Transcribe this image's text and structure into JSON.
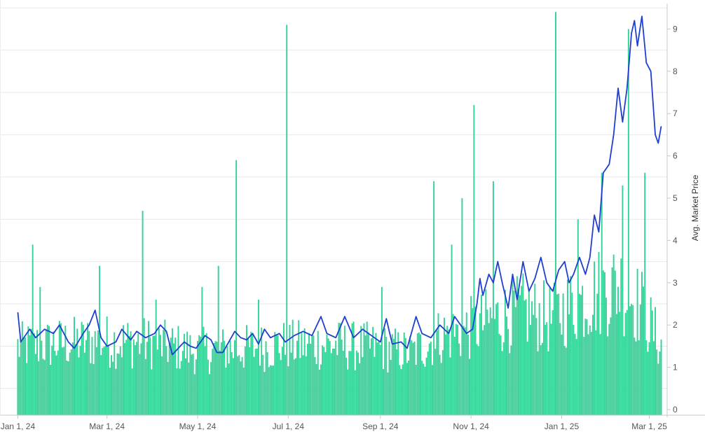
{
  "chart_data": {
    "type": "bar",
    "title": "",
    "xlabel": "",
    "ylabel": "Avg. Market Price",
    "ylim": [
      0,
      9.5
    ],
    "y_ticks": [
      "0",
      "1",
      "2",
      "3",
      "4",
      "5",
      "6",
      "7",
      "8",
      "9"
    ],
    "x_ticks": [
      {
        "label": "Jan 1, 24",
        "value": 0
      },
      {
        "label": "Mar 1, 24",
        "value": 60
      },
      {
        "label": "May 1, 24",
        "value": 121
      },
      {
        "label": "Jul 1, 24",
        "value": 182
      },
      {
        "label": "Sep 1, 24",
        "value": 244
      },
      {
        "label": "Nov 1, 24",
        "value": 305
      },
      {
        "label": "Jan 1, 25",
        "value": 366
      },
      {
        "label": "Mar 1, 25",
        "value": 425
      }
    ],
    "x_range": [
      -12,
      437
    ],
    "grid": true,
    "colors": {
      "bars": "#36d399",
      "line": "#1f3fd1",
      "grid": "#e8e8e8",
      "axis": "#c8c8c8"
    },
    "bar_series": {
      "name": "",
      "anchors": [
        [
          0,
          1.6
        ],
        [
          30,
          1.7
        ],
        [
          60,
          1.75
        ],
        [
          90,
          1.7
        ],
        [
          120,
          1.5
        ],
        [
          150,
          1.55
        ],
        [
          180,
          1.65
        ],
        [
          210,
          1.65
        ],
        [
          240,
          1.6
        ],
        [
          265,
          1.45
        ],
        [
          285,
          1.9
        ],
        [
          300,
          2.0
        ],
        [
          320,
          2.3
        ],
        [
          340,
          2.5
        ],
        [
          360,
          2.3
        ],
        [
          370,
          2.6
        ],
        [
          390,
          3.0
        ],
        [
          405,
          3.2
        ],
        [
          420,
          2.6
        ],
        [
          433,
          1.6
        ]
      ],
      "spikes": [
        {
          "x": 10,
          "value": 3.9
        },
        {
          "x": 15,
          "value": 2.9
        },
        {
          "x": 55,
          "value": 3.4
        },
        {
          "x": 84,
          "value": 4.7
        },
        {
          "x": 93,
          "value": 2.6
        },
        {
          "x": 124,
          "value": 2.9
        },
        {
          "x": 135,
          "value": 3.4
        },
        {
          "x": 147,
          "value": 5.9
        },
        {
          "x": 162,
          "value": 2.6
        },
        {
          "x": 181,
          "value": 9.1
        },
        {
          "x": 245,
          "value": 2.9
        },
        {
          "x": 280,
          "value": 5.4
        },
        {
          "x": 292,
          "value": 3.9
        },
        {
          "x": 299,
          "value": 5.0
        },
        {
          "x": 307,
          "value": 7.2
        },
        {
          "x": 320,
          "value": 5.4
        },
        {
          "x": 362,
          "value": 9.4
        },
        {
          "x": 377,
          "value": 4.5
        },
        {
          "x": 393,
          "value": 5.6
        },
        {
          "x": 407,
          "value": 5.3
        },
        {
          "x": 411,
          "value": 9.0
        },
        {
          "x": 422,
          "value": 5.6
        }
      ]
    },
    "line_series": {
      "name": "",
      "points": [
        [
          0,
          2.3
        ],
        [
          2,
          1.6
        ],
        [
          8,
          1.9
        ],
        [
          12,
          1.7
        ],
        [
          18,
          1.9
        ],
        [
          24,
          1.8
        ],
        [
          28,
          2.0
        ],
        [
          34,
          1.6
        ],
        [
          38,
          1.45
        ],
        [
          44,
          1.8
        ],
        [
          48,
          2.0
        ],
        [
          52,
          2.35
        ],
        [
          56,
          1.7
        ],
        [
          60,
          1.5
        ],
        [
          66,
          1.6
        ],
        [
          70,
          1.9
        ],
        [
          76,
          1.65
        ],
        [
          80,
          1.85
        ],
        [
          86,
          1.7
        ],
        [
          92,
          1.8
        ],
        [
          96,
          2.0
        ],
        [
          100,
          1.85
        ],
        [
          104,
          1.3
        ],
        [
          108,
          1.45
        ],
        [
          112,
          1.6
        ],
        [
          116,
          1.5
        ],
        [
          120,
          1.45
        ],
        [
          126,
          1.75
        ],
        [
          130,
          1.65
        ],
        [
          134,
          1.35
        ],
        [
          138,
          1.35
        ],
        [
          142,
          1.6
        ],
        [
          146,
          1.85
        ],
        [
          150,
          1.7
        ],
        [
          154,
          1.65
        ],
        [
          158,
          1.8
        ],
        [
          162,
          1.55
        ],
        [
          166,
          1.9
        ],
        [
          170,
          1.7
        ],
        [
          176,
          1.8
        ],
        [
          180,
          1.6
        ],
        [
          186,
          1.75
        ],
        [
          192,
          1.85
        ],
        [
          198,
          1.75
        ],
        [
          204,
          2.2
        ],
        [
          208,
          1.8
        ],
        [
          214,
          1.7
        ],
        [
          220,
          2.2
        ],
        [
          226,
          1.7
        ],
        [
          232,
          1.9
        ],
        [
          238,
          1.75
        ],
        [
          244,
          1.6
        ],
        [
          248,
          2.15
        ],
        [
          252,
          1.55
        ],
        [
          258,
          1.6
        ],
        [
          262,
          1.45
        ],
        [
          268,
          2.2
        ],
        [
          272,
          1.8
        ],
        [
          278,
          1.7
        ],
        [
          284,
          2.0
        ],
        [
          290,
          1.8
        ],
        [
          294,
          2.2
        ],
        [
          298,
          2.0
        ],
        [
          302,
          1.8
        ],
        [
          306,
          1.9
        ],
        [
          309,
          2.5
        ],
        [
          311,
          3.1
        ],
        [
          313,
          2.7
        ],
        [
          317,
          3.2
        ],
        [
          320,
          3.0
        ],
        [
          323,
          3.5
        ],
        [
          326,
          3.0
        ],
        [
          330,
          2.4
        ],
        [
          333,
          3.2
        ],
        [
          336,
          2.6
        ],
        [
          340,
          3.5
        ],
        [
          344,
          2.8
        ],
        [
          348,
          3.1
        ],
        [
          352,
          3.6
        ],
        [
          356,
          3.0
        ],
        [
          360,
          2.8
        ],
        [
          364,
          3.3
        ],
        [
          368,
          3.5
        ],
        [
          371,
          3.0
        ],
        [
          374,
          3.2
        ],
        [
          378,
          3.6
        ],
        [
          382,
          3.2
        ],
        [
          385,
          3.6
        ],
        [
          388,
          4.6
        ],
        [
          391,
          4.2
        ],
        [
          394,
          5.6
        ],
        [
          398,
          5.8
        ],
        [
          401,
          6.5
        ],
        [
          404,
          7.6
        ],
        [
          407,
          6.8
        ],
        [
          410,
          7.6
        ],
        [
          413,
          8.9
        ],
        [
          415,
          9.2
        ],
        [
          417,
          8.6
        ],
        [
          420,
          9.3
        ],
        [
          423,
          8.2
        ],
        [
          426,
          8.0
        ],
        [
          429,
          6.5
        ],
        [
          431,
          6.3
        ],
        [
          433,
          6.7
        ]
      ]
    }
  }
}
